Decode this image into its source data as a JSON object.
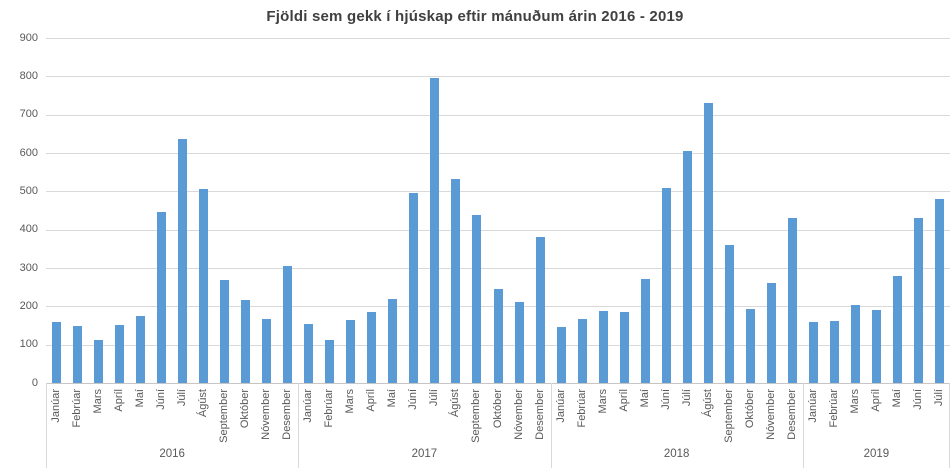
{
  "chart_data": {
    "type": "bar",
    "title": "Fjöldi sem gekk í hjúskap eftir mánuðum árin 2016 - 2019",
    "xlabel": "",
    "ylabel": "",
    "ylim": [
      0,
      900
    ],
    "yticks": [
      0,
      100,
      200,
      300,
      400,
      500,
      600,
      700,
      800,
      900
    ],
    "grid": true,
    "legend_position": "none",
    "bar_color": "#5B9BD5",
    "gridline_color": "#D9D9D9",
    "axis_line_color": "#C6C6C6",
    "separator_color": "#D9D9D9",
    "axis_text_color": "#595959",
    "title_color": "#404040",
    "groups": [
      {
        "year": "2016",
        "categories": [
          "Janúar",
          "Febrúar",
          "Mars",
          "Apríl",
          "Maí",
          "Júní",
          "Júlí",
          "Ágúst",
          "September",
          "Október",
          "Nóvember",
          "Desember"
        ],
        "values": [
          158,
          148,
          112,
          151,
          175,
          445,
          637,
          506,
          270,
          216,
          166,
          305
        ]
      },
      {
        "year": "2017",
        "categories": [
          "Janúar",
          "Febrúar",
          "Mars",
          "Apríl",
          "Maí",
          "Júní",
          "Júlí",
          "Ágúst",
          "September",
          "Október",
          "Nóvember",
          "Desember"
        ],
        "values": [
          154,
          112,
          164,
          184,
          219,
          496,
          795,
          533,
          437,
          245,
          212,
          380
        ]
      },
      {
        "year": "2018",
        "categories": [
          "Janúar",
          "Febrúar",
          "Mars",
          "Apríl",
          "Maí",
          "Júní",
          "Júlí",
          "Ágúst",
          "September",
          "Október",
          "Nóvember",
          "Desember"
        ],
        "values": [
          146,
          166,
          187,
          186,
          271,
          508,
          605,
          730,
          361,
          192,
          262,
          431
        ]
      },
      {
        "year": "2019",
        "categories": [
          "Janúar",
          "Febrúar",
          "Mars",
          "Apríl",
          "Maí",
          "Júní",
          "Júlí"
        ],
        "values": [
          160,
          161,
          203,
          190,
          278,
          430,
          481
        ]
      }
    ]
  }
}
